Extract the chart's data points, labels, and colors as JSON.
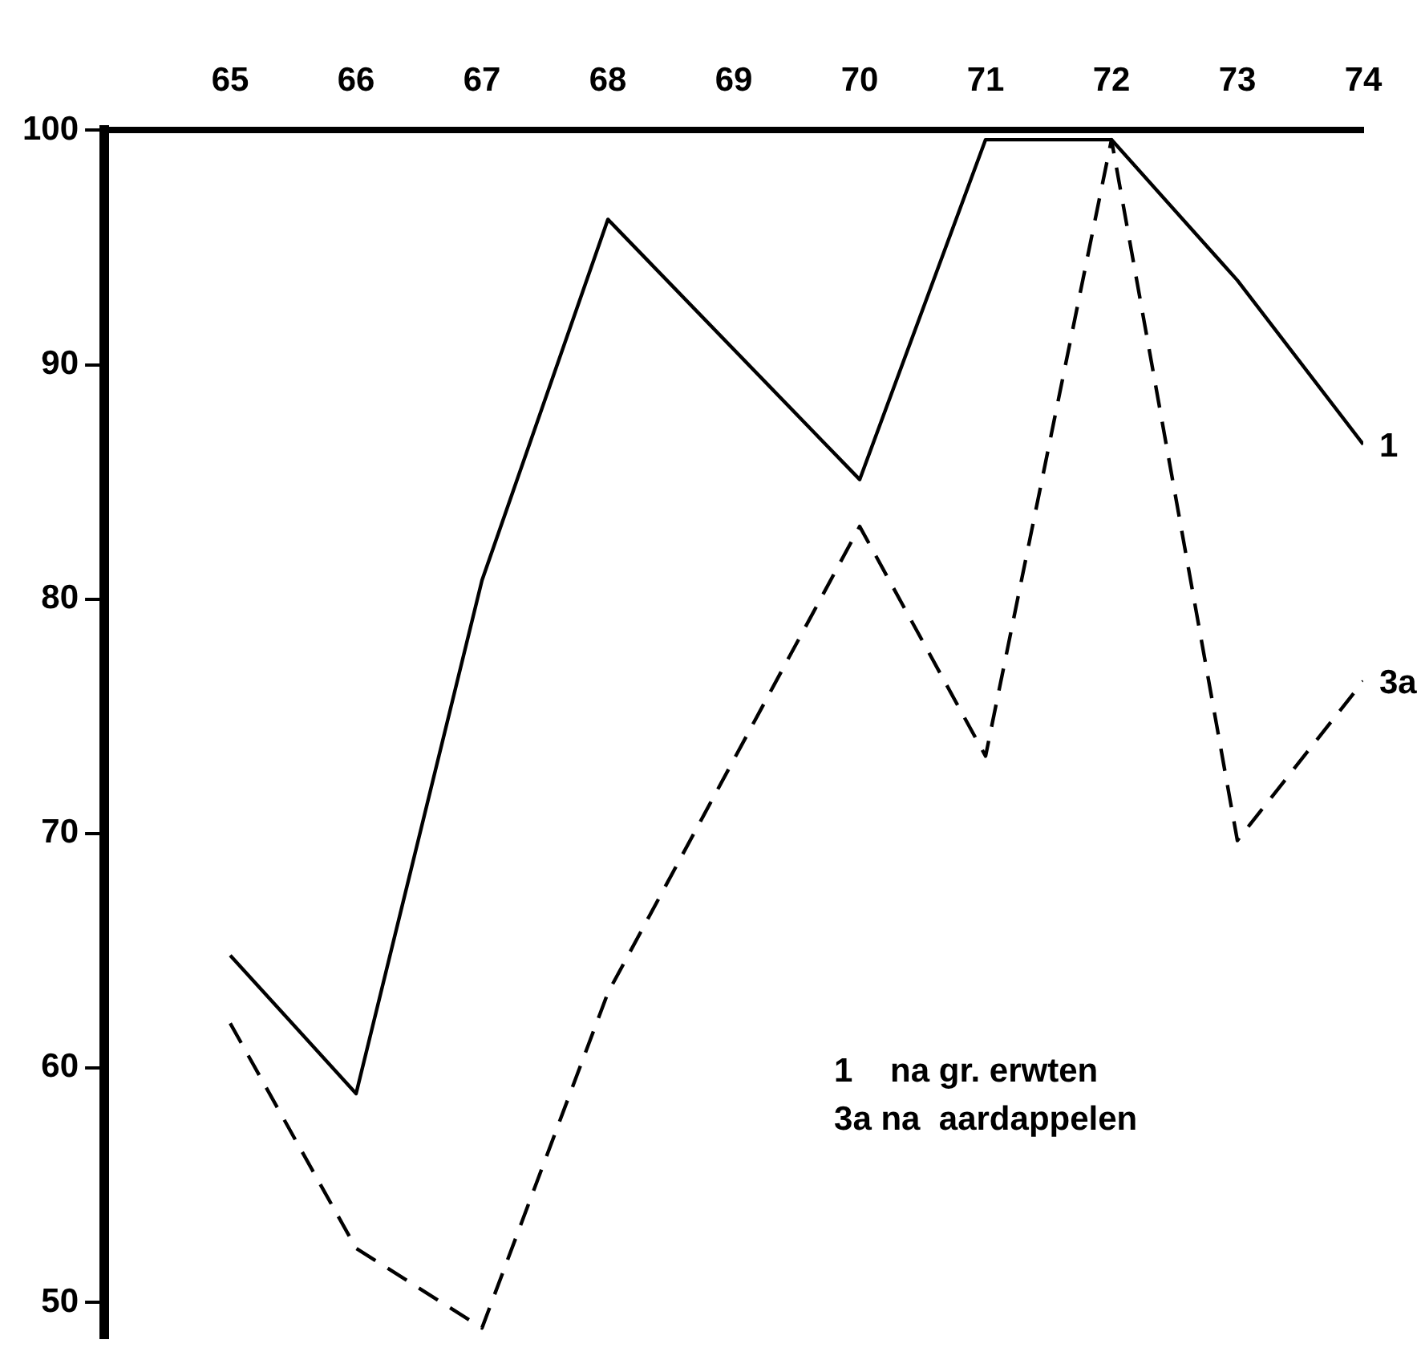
{
  "chart_data": {
    "type": "line",
    "x": [
      65,
      66,
      67,
      68,
      69,
      70,
      71,
      72,
      73,
      74
    ],
    "xlim": [
      64,
      74
    ],
    "xticks": [
      65,
      66,
      67,
      68,
      69,
      70,
      71,
      72,
      73,
      74
    ],
    "ylim": [
      48.5,
      100
    ],
    "yticks": [
      50,
      60,
      70,
      80,
      90,
      100
    ],
    "grid": false,
    "legend": false,
    "marker": "none",
    "series": [
      {
        "name": "1",
        "color": "#000000",
        "line_style": "solid",
        "values": [
          64.8,
          58.9,
          80.8,
          96.2,
          null,
          85.1,
          99.6,
          99.6,
          93.6,
          86.6
        ]
      },
      {
        "name": "3a",
        "color": "#000000",
        "line_style": "dashed",
        "values": [
          61.9,
          52.3,
          48.9,
          63.2,
          null,
          83.1,
          73.3,
          99.6,
          69.7,
          76.5
        ]
      }
    ],
    "annotations": [
      "1    na gr. erwten",
      "3a na  aardappelen"
    ]
  }
}
